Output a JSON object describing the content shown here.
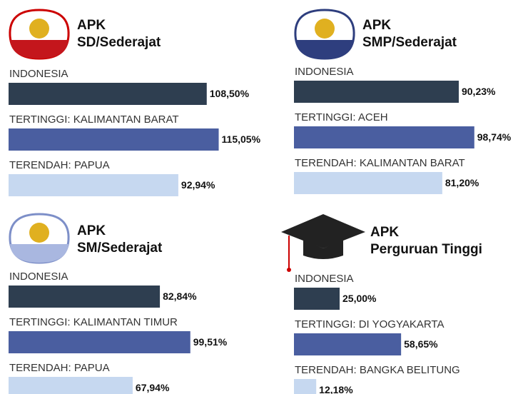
{
  "chart_data": [
    {
      "type": "bar",
      "title": "APK",
      "subtitle": "SD/Sederajat",
      "categories": [
        "INDONESIA",
        "TERTINGGI: KALIMANTAN BARAT",
        "TERENDAH: PAPUA"
      ],
      "values": [
        108.5,
        115.05,
        92.94
      ],
      "value_labels": [
        "108,50%",
        "115,05%",
        "92,94%"
      ],
      "colors": [
        "#2e3e50",
        "#4a5ea0",
        "#c6d8f0"
      ]
    },
    {
      "type": "bar",
      "title": "APK",
      "subtitle": "SMP/Sederajat",
      "categories": [
        "INDONESIA",
        "TERTINGGI: ACEH",
        "TERENDAH: KALIMANTAN BARAT"
      ],
      "values": [
        90.23,
        98.74,
        81.2
      ],
      "value_labels": [
        "90,23%",
        "98,74%",
        "81,20%"
      ],
      "colors": [
        "#2e3e50",
        "#4a5ea0",
        "#c6d8f0"
      ]
    },
    {
      "type": "bar",
      "title": "APK",
      "subtitle": "SM/Sederajat",
      "categories": [
        "INDONESIA",
        "TERTINGGI: KALIMANTAN TIMUR",
        "TERENDAH: PAPUA"
      ],
      "values": [
        82.84,
        99.51,
        67.94
      ],
      "value_labels": [
        "82,84%",
        "99,51%",
        "67,94%"
      ],
      "colors": [
        "#2e3e50",
        "#4a5ea0",
        "#c6d8f0"
      ]
    },
    {
      "type": "bar",
      "title": "APK",
      "subtitle": "Perguruan Tinggi",
      "categories": [
        "INDONESIA",
        "TERTINGGI: DI YOGYAKARTA",
        "TERENDAH: BANGKA BELITUNG"
      ],
      "values": [
        25.0,
        58.65,
        12.18
      ],
      "value_labels": [
        "25,00%",
        "58,65%",
        "12,18%"
      ],
      "colors": [
        "#2e3e50",
        "#4a5ea0",
        "#c6d8f0"
      ]
    }
  ]
}
